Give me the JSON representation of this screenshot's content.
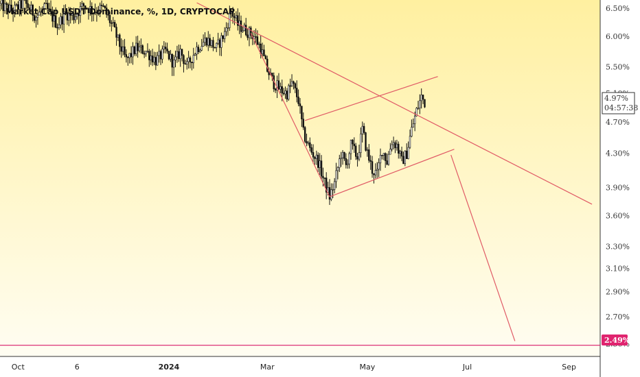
{
  "chart_title": "Market Cap USDT Dominance, %, 1D, CRYPTOCAP",
  "colors": {
    "bg_top": "#fff0a0",
    "bg_bottom": "#fffdf2",
    "candle": "#111111",
    "trendline": "#e05a66",
    "hline": "#d81b6a",
    "hline_label_bg": "#e0246f",
    "price_label_border": "#333333"
  },
  "price_label": {
    "value": "4.97%",
    "countdown": "04:57:38"
  },
  "hline_label": "2.49%",
  "chart_data": {
    "type": "candlestick",
    "title": "Market Cap USDT Dominance, %, 1D, CRYPTOCAP",
    "y_scale": "log",
    "ylim": [
      2.45,
      6.6
    ],
    "xlim": [
      "2023-09-20",
      "2024-09-20"
    ],
    "y_ticks": [
      {
        "value": 6.5,
        "label": "6.50%"
      },
      {
        "value": 6.0,
        "label": "6.00%"
      },
      {
        "value": 5.5,
        "label": "5.50%"
      },
      {
        "value": 5.1,
        "label": "5.10%"
      },
      {
        "value": 4.7,
        "label": "4.70%"
      },
      {
        "value": 4.3,
        "label": "4.30%"
      },
      {
        "value": 3.9,
        "label": "3.90%"
      },
      {
        "value": 3.6,
        "label": "3.60%"
      },
      {
        "value": 3.3,
        "label": "3.30%"
      },
      {
        "value": 3.1,
        "label": "3.10%"
      },
      {
        "value": 2.9,
        "label": "2.90%"
      },
      {
        "value": 2.7,
        "label": "2.70%"
      },
      {
        "value": 2.5,
        "label": "2.50%"
      }
    ],
    "x_ticks": [
      {
        "date": "2023-10-01",
        "label": "Oct",
        "bold": false
      },
      {
        "date": "2023-11-06",
        "label": "6",
        "bold": false
      },
      {
        "date": "2024-01-01",
        "label": "2024",
        "bold": true
      },
      {
        "date": "2024-03-01",
        "label": "Mar",
        "bold": false
      },
      {
        "date": "2024-05-01",
        "label": "May",
        "bold": false
      },
      {
        "date": "2024-07-01",
        "label": "Jul",
        "bold": false
      },
      {
        "date": "2024-09-01",
        "label": "Sep",
        "bold": false
      }
    ],
    "price_path": [
      [
        "2023-09-20",
        6.55
      ],
      [
        "2023-09-28",
        6.45
      ],
      [
        "2023-10-05",
        6.6
      ],
      [
        "2023-10-12",
        6.35
      ],
      [
        "2023-10-18",
        6.5
      ],
      [
        "2023-10-25",
        6.2
      ],
      [
        "2023-10-30",
        6.4
      ],
      [
        "2023-11-04",
        6.35
      ],
      [
        "2023-11-10",
        6.55
      ],
      [
        "2023-11-16",
        6.45
      ],
      [
        "2023-11-22",
        6.5
      ],
      [
        "2023-11-28",
        6.15
      ],
      [
        "2023-12-02",
        5.85
      ],
      [
        "2023-12-06",
        5.6
      ],
      [
        "2023-12-12",
        5.8
      ],
      [
        "2023-12-18",
        5.75
      ],
      [
        "2023-12-24",
        5.6
      ],
      [
        "2023-12-30",
        5.75
      ],
      [
        "2024-01-04",
        5.55
      ],
      [
        "2024-01-08",
        5.75
      ],
      [
        "2024-01-12",
        5.5
      ],
      [
        "2024-01-18",
        5.8
      ],
      [
        "2024-01-24",
        5.95
      ],
      [
        "2024-01-30",
        5.8
      ],
      [
        "2024-02-04",
        6.05
      ],
      [
        "2024-02-08",
        6.45
      ],
      [
        "2024-02-12",
        6.2
      ],
      [
        "2024-02-17",
        6.1
      ],
      [
        "2024-02-22",
        6.0
      ],
      [
        "2024-02-26",
        5.8
      ],
      [
        "2024-03-01",
        5.45
      ],
      [
        "2024-03-05",
        5.25
      ],
      [
        "2024-03-09",
        5.15
      ],
      [
        "2024-03-13",
        5.1
      ],
      [
        "2024-03-16",
        5.25
      ],
      [
        "2024-03-20",
        5.0
      ],
      [
        "2024-03-23",
        4.55
      ],
      [
        "2024-03-27",
        4.35
      ],
      [
        "2024-04-01",
        4.2
      ],
      [
        "2024-04-05",
        3.95
      ],
      [
        "2024-04-08",
        3.8
      ],
      [
        "2024-04-11",
        3.95
      ],
      [
        "2024-04-15",
        4.3
      ],
      [
        "2024-04-18",
        4.15
      ],
      [
        "2024-04-21",
        4.4
      ],
      [
        "2024-04-25",
        4.25
      ],
      [
        "2024-04-28",
        4.6
      ],
      [
        "2024-05-01",
        4.3
      ],
      [
        "2024-05-04",
        4.1
      ],
      [
        "2024-05-07",
        4.05
      ],
      [
        "2024-05-10",
        4.35
      ],
      [
        "2024-05-13",
        4.2
      ],
      [
        "2024-05-16",
        4.45
      ],
      [
        "2024-05-19",
        4.4
      ],
      [
        "2024-05-22",
        4.2
      ],
      [
        "2024-05-25",
        4.3
      ],
      [
        "2024-05-28",
        4.6
      ],
      [
        "2024-05-31",
        4.85
      ],
      [
        "2024-06-03",
        5.05
      ],
      [
        "2024-06-05",
        4.97
      ]
    ],
    "trendlines": [
      {
        "name": "descending-resistance",
        "from": [
          "2024-01-18",
          6.6
        ],
        "to": [
          "2024-09-15",
          3.72
        ]
      },
      {
        "name": "drop-leg",
        "from": [
          "2024-02-20",
          6.05
        ],
        "to": [
          "2024-04-08",
          3.8
        ]
      },
      {
        "name": "wedge-upper",
        "from": [
          "2024-03-24",
          4.72
        ],
        "to": [
          "2024-06-13",
          5.35
        ]
      },
      {
        "name": "wedge-lower",
        "from": [
          "2024-04-08",
          3.8
        ],
        "to": [
          "2024-06-23",
          4.35
        ]
      },
      {
        "name": "projection",
        "from": [
          "2024-06-21",
          4.28
        ],
        "to": [
          "2024-07-30",
          2.52
        ]
      }
    ],
    "horizontal_line": {
      "value": 2.49,
      "label": "2.49%"
    }
  }
}
